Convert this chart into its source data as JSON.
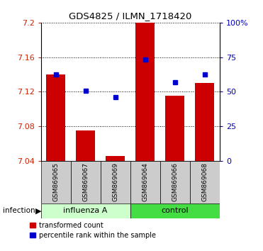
{
  "title": "GDS4825 / ILMN_1718420",
  "samples": [
    "GSM869065",
    "GSM869067",
    "GSM869069",
    "GSM869064",
    "GSM869066",
    "GSM869068"
  ],
  "red_values": [
    7.14,
    7.075,
    7.045,
    7.2,
    7.115,
    7.13
  ],
  "blue_values": [
    7.14,
    7.121,
    7.114,
    7.157,
    7.131,
    7.14
  ],
  "y_min": 7.04,
  "y_max": 7.2,
  "y_ticks": [
    7.04,
    7.08,
    7.12,
    7.16,
    7.2
  ],
  "right_y_ticks": [
    0,
    25,
    50,
    75,
    100
  ],
  "right_y_labels": [
    "0",
    "25",
    "50",
    "75",
    "100%"
  ],
  "bar_color": "#cc0000",
  "dot_color": "#0000cc",
  "tick_color_left": "#cc2200",
  "tick_color_right": "#0000bb",
  "influenza_color": "#ccffcc",
  "control_color": "#44dd44",
  "sample_bg": "#cccccc",
  "legend_red_label": "transformed count",
  "legend_blue_label": "percentile rank within the sample",
  "infection_label": "infection"
}
